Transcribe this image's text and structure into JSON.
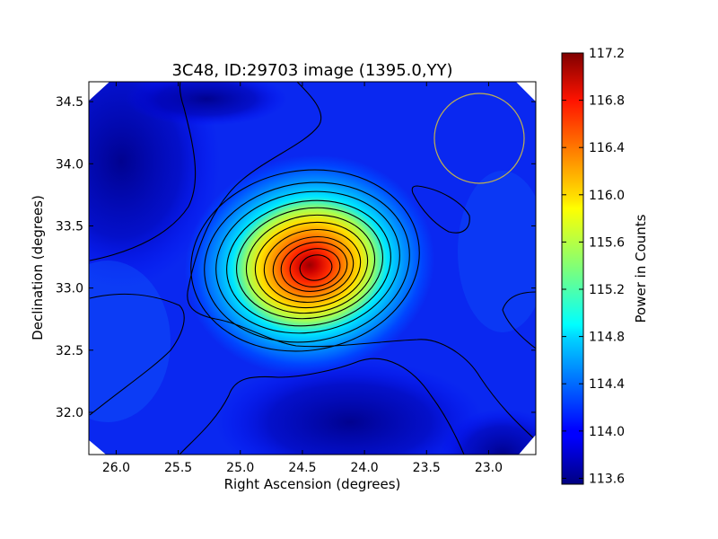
{
  "chart_data": {
    "type": "heatmap",
    "title": "3C48, ID:29703 image (1395.0,YY)",
    "xlabel": "Right Ascension (degrees)",
    "ylabel": "Declination (degrees)",
    "xlim": [
      26.22,
      22.62
    ],
    "ylim": [
      31.66,
      34.66
    ],
    "x_ticks": [
      26.0,
      25.5,
      25.0,
      24.5,
      24.0,
      23.5,
      23.0
    ],
    "x_tick_labels": [
      "26.0",
      "25.5",
      "25.0",
      "24.5",
      "24.0",
      "23.5",
      "23.0"
    ],
    "y_ticks": [
      32.0,
      32.5,
      33.0,
      33.5,
      34.0,
      34.5
    ],
    "y_tick_labels": [
      "32.0",
      "32.5",
      "33.0",
      "33.5",
      "34.0",
      "34.5"
    ],
    "colorbar": {
      "label": "Power in Counts",
      "range": [
        113.55,
        117.2
      ],
      "ticks": [
        113.6,
        114.0,
        114.4,
        114.8,
        115.2,
        115.6,
        116.0,
        116.4,
        116.8,
        117.2
      ],
      "tick_labels": [
        "113.6",
        "114.0",
        "114.4",
        "114.8",
        "115.2",
        "115.6",
        "116.0",
        "116.4",
        "116.8",
        "117.2"
      ]
    },
    "colormap": "jet",
    "background_level": 114.05,
    "peak": {
      "ra": 24.4,
      "dec": 33.15,
      "value": 117.15
    },
    "contour_interval": 0.2,
    "beam_circle": {
      "ra": 23.07,
      "dec": 34.21,
      "radius_deg": 0.37,
      "color": "#c0b050"
    },
    "grid": false
  }
}
